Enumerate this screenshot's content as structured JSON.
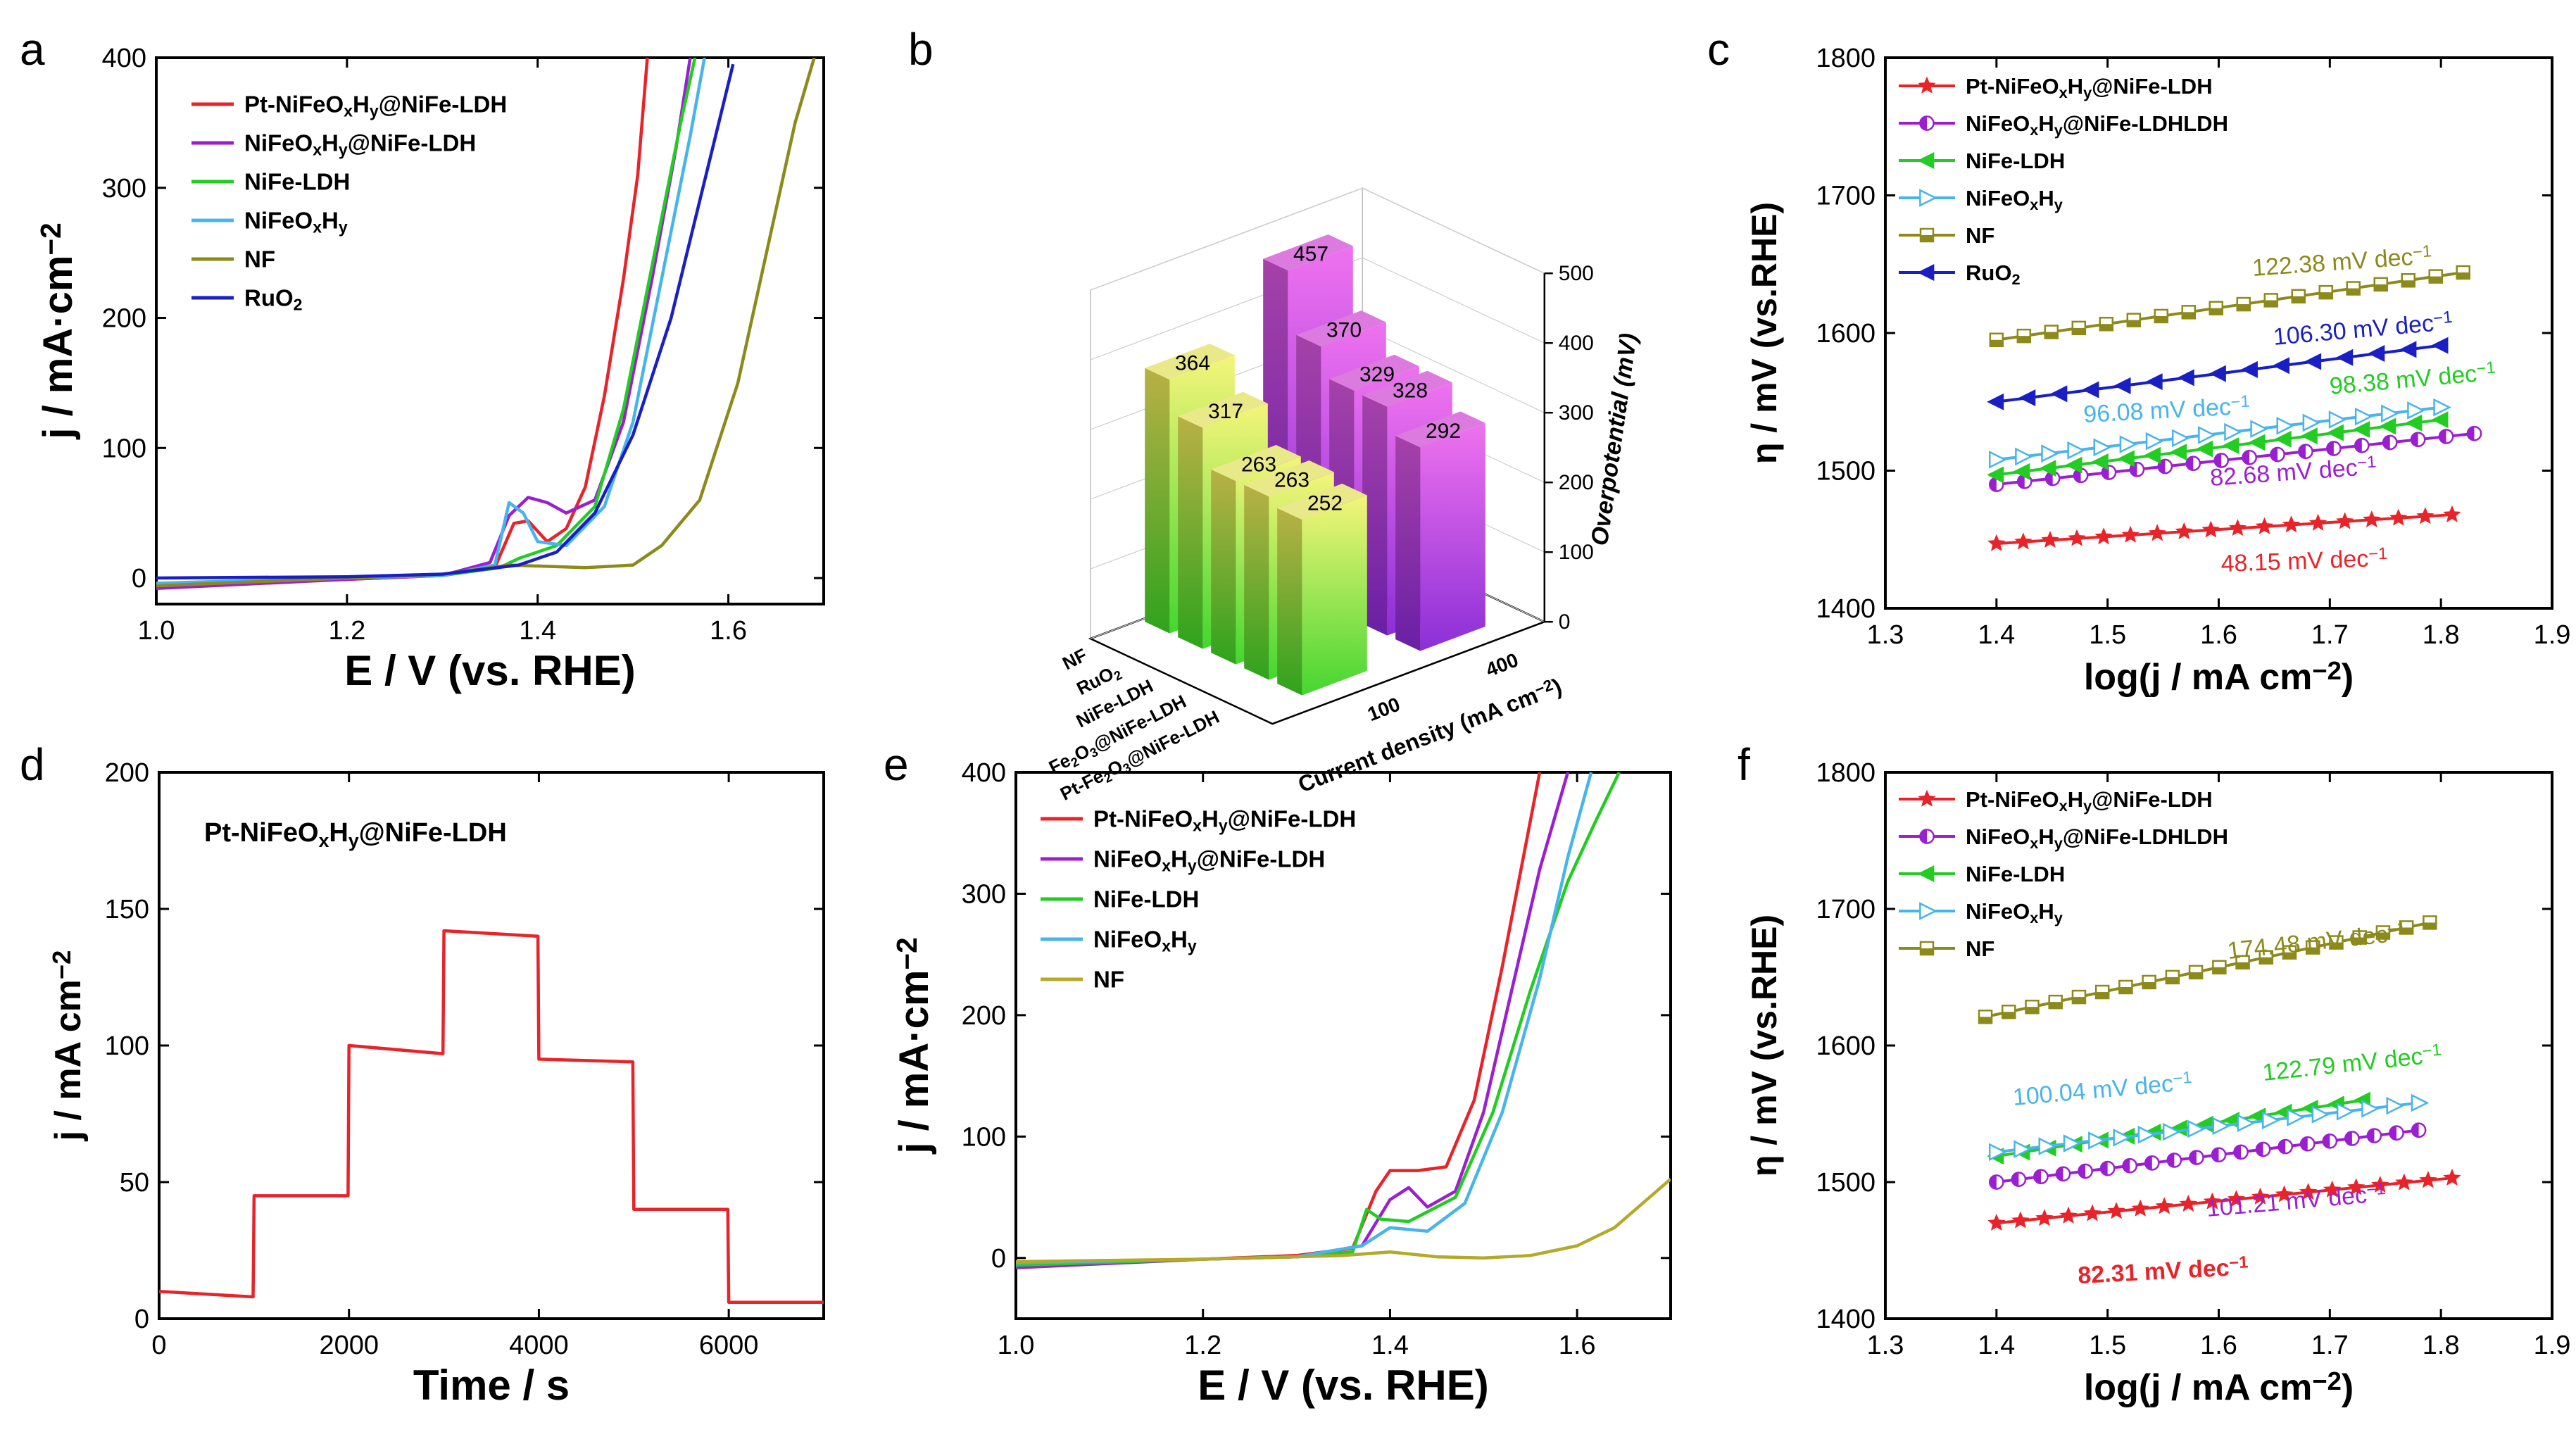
{
  "chart_data": [
    {
      "id": "a",
      "panel_label": "a",
      "type": "line",
      "xlabel": "E / V (vs. RHE)",
      "ylabel": "j / mA·cm⁻²",
      "xlim": [
        1.0,
        1.7
      ],
      "ylim": [
        -20,
        400
      ],
      "xticks": [
        1.0,
        1.2,
        1.4,
        1.6
      ],
      "yticks": [
        0,
        100,
        200,
        300,
        400
      ],
      "legend_position": "top-left",
      "series": [
        {
          "name": "Pt-NiFeOₓHᵧ@NiFe-LDH",
          "color": "#e8232a",
          "points": [
            [
              1.0,
              -6
            ],
            [
              1.2,
              -1
            ],
            [
              1.3,
              2
            ],
            [
              1.355,
              8
            ],
            [
              1.375,
              42
            ],
            [
              1.39,
              44
            ],
            [
              1.41,
              28
            ],
            [
              1.43,
              38
            ],
            [
              1.45,
              70
            ],
            [
              1.47,
              140
            ],
            [
              1.49,
              230
            ],
            [
              1.505,
              310
            ],
            [
              1.515,
              400
            ]
          ]
        },
        {
          "name": "NiFeOₓHᵧ@NiFe-LDH",
          "color": "#9b1fd1",
          "points": [
            [
              1.0,
              -8
            ],
            [
              1.2,
              -1
            ],
            [
              1.3,
              2
            ],
            [
              1.35,
              12
            ],
            [
              1.37,
              48
            ],
            [
              1.39,
              62
            ],
            [
              1.41,
              58
            ],
            [
              1.43,
              50
            ],
            [
              1.46,
              60
            ],
            [
              1.49,
              120
            ],
            [
              1.52,
              230
            ],
            [
              1.545,
              330
            ],
            [
              1.56,
              400
            ]
          ]
        },
        {
          "name": "NiFe-LDH",
          "color": "#22cc22",
          "points": [
            [
              1.0,
              -5
            ],
            [
              1.2,
              0
            ],
            [
              1.3,
              2
            ],
            [
              1.36,
              8
            ],
            [
              1.38,
              15
            ],
            [
              1.42,
              25
            ],
            [
              1.46,
              55
            ],
            [
              1.49,
              130
            ],
            [
              1.52,
              240
            ],
            [
              1.55,
              350
            ],
            [
              1.565,
              400
            ]
          ]
        },
        {
          "name": "NiFeOₓHᵧ",
          "color": "#48b4ec",
          "points": [
            [
              1.0,
              -4
            ],
            [
              1.2,
              0
            ],
            [
              1.3,
              2
            ],
            [
              1.355,
              10
            ],
            [
              1.37,
              58
            ],
            [
              1.385,
              50
            ],
            [
              1.4,
              28
            ],
            [
              1.43,
              25
            ],
            [
              1.47,
              55
            ],
            [
              1.5,
              120
            ],
            [
              1.53,
              230
            ],
            [
              1.56,
              340
            ],
            [
              1.575,
              400
            ]
          ]
        },
        {
          "name": "NF",
          "color": "#8c8a1a",
          "points": [
            [
              1.0,
              -6
            ],
            [
              1.2,
              0
            ],
            [
              1.3,
              3
            ],
            [
              1.37,
              10
            ],
            [
              1.45,
              8
            ],
            [
              1.5,
              10
            ],
            [
              1.53,
              25
            ],
            [
              1.57,
              60
            ],
            [
              1.61,
              150
            ],
            [
              1.64,
              250
            ],
            [
              1.67,
              350
            ],
            [
              1.69,
              400
            ]
          ]
        },
        {
          "name": "RuO₂",
          "color": "#1a1fc4",
          "points": [
            [
              1.0,
              0
            ],
            [
              1.2,
              1
            ],
            [
              1.3,
              3
            ],
            [
              1.38,
              10
            ],
            [
              1.42,
              20
            ],
            [
              1.46,
              50
            ],
            [
              1.5,
              110
            ],
            [
              1.54,
              200
            ],
            [
              1.57,
              290
            ],
            [
              1.59,
              350
            ],
            [
              1.605,
              395
            ]
          ]
        }
      ]
    },
    {
      "id": "b",
      "panel_label": "b",
      "type": "bar",
      "title_3d": "3D bar chart",
      "xlabel": "Current density (mA cm⁻²)",
      "ylabel": "Overpotential (mV)",
      "categories": [
        "NF",
        "RuO₂",
        "NiFe-LDH",
        "Fe₂O₃@NiFe-LDH",
        "Pt-Fe₂O₃@NiFe-LDH"
      ],
      "zlim": [
        0,
        500
      ],
      "zticks": [
        0,
        100,
        200,
        300,
        400,
        500
      ],
      "current_density_ticks": [
        "100",
        "400"
      ],
      "series": [
        {
          "name": "100",
          "values": [
            364,
            317,
            263,
            263,
            252
          ]
        },
        {
          "name": "400",
          "values": [
            457,
            370,
            329,
            328,
            292
          ]
        }
      ]
    },
    {
      "id": "c",
      "panel_label": "c",
      "type": "scatter",
      "xlabel": "log(j / mA cm⁻²)",
      "ylabel": "η / mV (vs.RHE)",
      "xlim": [
        1.3,
        1.9
      ],
      "ylim": [
        1400,
        1800
      ],
      "xticks": [
        1.3,
        1.4,
        1.5,
        1.6,
        1.7,
        1.8,
        1.9
      ],
      "yticks": [
        1400,
        1500,
        1600,
        1700,
        1800
      ],
      "legend_position": "top-left",
      "series": [
        {
          "name": "Pt-NiFeOₓHᵧ@NiFe-LDH",
          "color": "#e8232a",
          "marker": "star",
          "x_start": 1.4,
          "x_end": 1.81,
          "y_start": 1447,
          "y_end": 1468,
          "n": 18,
          "slope_label": "48.15 mV dec⁻¹"
        },
        {
          "name": "NiFeOₓHᵧ@NiFe-LDHLDH",
          "color": "#9b1fd1",
          "marker": "circle",
          "x_start": 1.4,
          "x_end": 1.83,
          "y_start": 1490,
          "y_end": 1527,
          "n": 18,
          "slope_label": "82.68 mV dec⁻¹"
        },
        {
          "name": "NiFe-LDH",
          "color": "#22cc22",
          "marker": "tri-left",
          "x_start": 1.4,
          "x_end": 1.8,
          "y_start": 1497,
          "y_end": 1537,
          "n": 18,
          "slope_label": "98.38 mV dec⁻¹"
        },
        {
          "name": "NiFeOₓHᵧ",
          "color": "#48b4ec",
          "marker": "tri-right",
          "x_start": 1.4,
          "x_end": 1.8,
          "y_start": 1508,
          "y_end": 1546,
          "n": 18,
          "slope_label": "96.08 mV dec⁻¹"
        },
        {
          "name": "NF",
          "color": "#8c8a1a",
          "marker": "square",
          "x_start": 1.4,
          "x_end": 1.82,
          "y_start": 1595,
          "y_end": 1644,
          "n": 18,
          "slope_label": "122.38 mV dec⁻¹"
        },
        {
          "name": "RuO₂",
          "color": "#1a1fc4",
          "marker": "tri-left",
          "x_start": 1.4,
          "x_end": 1.8,
          "y_start": 1550,
          "y_end": 1591,
          "n": 15,
          "slope_label": "106.30 mV dec⁻¹"
        }
      ]
    },
    {
      "id": "d",
      "panel_label": "d",
      "type": "line",
      "annotation": "Pt-NiFeOₓHᵧ@NiFe-LDH",
      "xlabel": "Time / s",
      "ylabel": "j / mA cm⁻²",
      "xlim": [
        0,
        7000
      ],
      "ylim": [
        0,
        200
      ],
      "xticks": [
        0,
        2000,
        4000,
        6000
      ],
      "yticks": [
        0,
        50,
        100,
        150,
        200
      ],
      "series": [
        {
          "name": "Pt-NiFeOₓHᵧ@NiFe-LDH",
          "color": "#e8232a",
          "points": [
            [
              0,
              10
            ],
            [
              990,
              8
            ],
            [
              1000,
              45
            ],
            [
              1990,
              45
            ],
            [
              2000,
              100
            ],
            [
              2990,
              97
            ],
            [
              3000,
              142
            ],
            [
              3990,
              140
            ],
            [
              4000,
              95
            ],
            [
              4990,
              94
            ],
            [
              5000,
              40
            ],
            [
              5990,
              40
            ],
            [
              6000,
              6
            ],
            [
              7000,
              6
            ]
          ]
        }
      ]
    },
    {
      "id": "e",
      "panel_label": "e",
      "type": "line",
      "xlabel": "E / V (vs. RHE)",
      "ylabel": "j / mA·cm⁻²",
      "xlim": [
        1.0,
        1.7
      ],
      "ylim": [
        -50,
        400
      ],
      "xticks": [
        1.0,
        1.2,
        1.4,
        1.6
      ],
      "yticks": [
        0,
        100,
        200,
        300,
        400
      ],
      "legend_position": "top-left",
      "series": [
        {
          "name": "Pt-NiFeOₓHᵧ@NiFe-LDH",
          "color": "#e8232a",
          "points": [
            [
              1.0,
              -5
            ],
            [
              1.2,
              -1
            ],
            [
              1.3,
              2
            ],
            [
              1.36,
              8
            ],
            [
              1.385,
              55
            ],
            [
              1.4,
              72
            ],
            [
              1.43,
              72
            ],
            [
              1.46,
              75
            ],
            [
              1.49,
              130
            ],
            [
              1.52,
              240
            ],
            [
              1.545,
              340
            ],
            [
              1.56,
              400
            ]
          ]
        },
        {
          "name": "NiFeOₓHᵧ@NiFe-LDH",
          "color": "#9b1fd1",
          "points": [
            [
              1.0,
              -8
            ],
            [
              1.2,
              -1
            ],
            [
              1.3,
              1
            ],
            [
              1.37,
              10
            ],
            [
              1.4,
              48
            ],
            [
              1.42,
              58
            ],
            [
              1.44,
              42
            ],
            [
              1.47,
              55
            ],
            [
              1.5,
              120
            ],
            [
              1.53,
              220
            ],
            [
              1.56,
              320
            ],
            [
              1.59,
              400
            ]
          ]
        },
        {
          "name": "NiFe-LDH",
          "color": "#22cc22",
          "points": [
            [
              1.0,
              -6
            ],
            [
              1.2,
              -1
            ],
            [
              1.3,
              1
            ],
            [
              1.36,
              5
            ],
            [
              1.375,
              40
            ],
            [
              1.39,
              32
            ],
            [
              1.42,
              30
            ],
            [
              1.47,
              50
            ],
            [
              1.51,
              120
            ],
            [
              1.55,
              220
            ],
            [
              1.59,
              310
            ],
            [
              1.62,
              360
            ],
            [
              1.645,
              400
            ]
          ]
        },
        {
          "name": "NiFeOₓHᵧ",
          "color": "#48b4ec",
          "points": [
            [
              1.0,
              -4
            ],
            [
              1.2,
              -1
            ],
            [
              1.3,
              1
            ],
            [
              1.37,
              10
            ],
            [
              1.4,
              25
            ],
            [
              1.44,
              22
            ],
            [
              1.48,
              45
            ],
            [
              1.52,
              120
            ],
            [
              1.56,
              230
            ],
            [
              1.59,
              330
            ],
            [
              1.615,
              400
            ]
          ]
        },
        {
          "name": "NF",
          "color": "#b3a92a",
          "points": [
            [
              1.0,
              -3
            ],
            [
              1.2,
              -1
            ],
            [
              1.35,
              2
            ],
            [
              1.4,
              5
            ],
            [
              1.45,
              1
            ],
            [
              1.5,
              0
            ],
            [
              1.55,
              2
            ],
            [
              1.6,
              10
            ],
            [
              1.64,
              25
            ],
            [
              1.7,
              65
            ]
          ]
        }
      ]
    },
    {
      "id": "f",
      "panel_label": "f",
      "type": "scatter",
      "xlabel": "log(j / mA cm⁻²)",
      "ylabel": "η / mV (vs.RHE)",
      "xlim": [
        1.3,
        1.9
      ],
      "ylim": [
        1400,
        1800
      ],
      "xticks": [
        1.3,
        1.4,
        1.5,
        1.6,
        1.7,
        1.8,
        1.9
      ],
      "yticks": [
        1400,
        1500,
        1600,
        1700,
        1800
      ],
      "legend_position": "top-left",
      "series": [
        {
          "name": "Pt-NiFeOₓHᵧ@NiFe-LDH",
          "color": "#e8232a",
          "marker": "star",
          "x_start": 1.4,
          "x_end": 1.81,
          "y_start": 1470,
          "y_end": 1503,
          "n": 20,
          "slope_label": "82.31 mV dec⁻¹"
        },
        {
          "name": "NiFeOₓHᵧ@NiFe-LDHLDH",
          "color": "#9b1fd1",
          "marker": "circle",
          "x_start": 1.4,
          "x_end": 1.78,
          "y_start": 1500,
          "y_end": 1538,
          "n": 20,
          "slope_label": "101.21 mV dec⁻¹"
        },
        {
          "name": "NiFe-LDH",
          "color": "#22cc22",
          "marker": "tri-left",
          "x_start": 1.4,
          "x_end": 1.73,
          "y_start": 1519,
          "y_end": 1560,
          "n": 15,
          "slope_label": "122.79 mV dec⁻¹"
        },
        {
          "name": "NiFeOₓHᵧ",
          "color": "#48b4ec",
          "marker": "tri-right",
          "x_start": 1.4,
          "x_end": 1.78,
          "y_start": 1522,
          "y_end": 1558,
          "n": 18,
          "slope_label": "100.04 mV dec⁻¹"
        },
        {
          "name": "NF",
          "color": "#8c8a1a",
          "marker": "square",
          "x_start": 1.39,
          "x_end": 1.79,
          "y_start": 1621,
          "y_end": 1690,
          "n": 20,
          "slope_label": "174.48 mV dec⁻¹"
        }
      ]
    }
  ]
}
